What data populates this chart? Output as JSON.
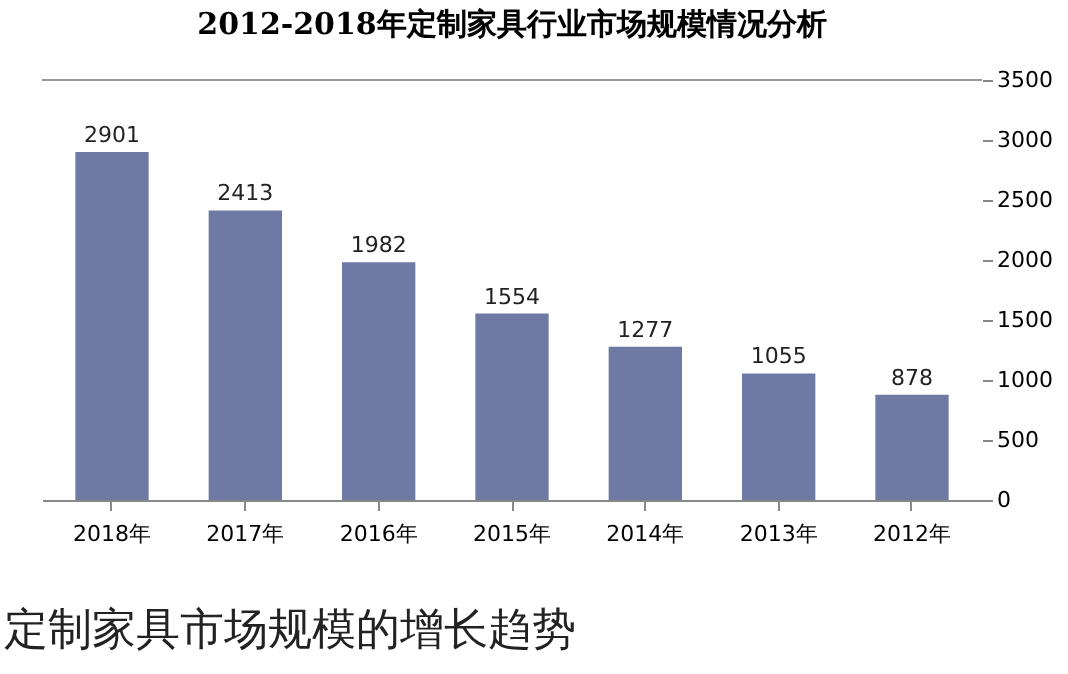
{
  "chart_data": {
    "type": "bar",
    "title": "2012-2018年定制家具行业市场规模情况分析",
    "categories": [
      "2018年",
      "2017年",
      "2016年",
      "2015年",
      "2014年",
      "2013年",
      "2012年"
    ],
    "values": [
      2901,
      2413,
      1982,
      1554,
      1277,
      1055,
      878
    ],
    "color": "#6e7aa4",
    "ylim": [
      0,
      3500
    ],
    "yticks": [
      0,
      500,
      1000,
      1500,
      2000,
      2500,
      3000,
      3500
    ],
    "grid": false,
    "data_labels": true,
    "annotations": [
      "定制家具市场规模的增长趋势"
    ]
  }
}
